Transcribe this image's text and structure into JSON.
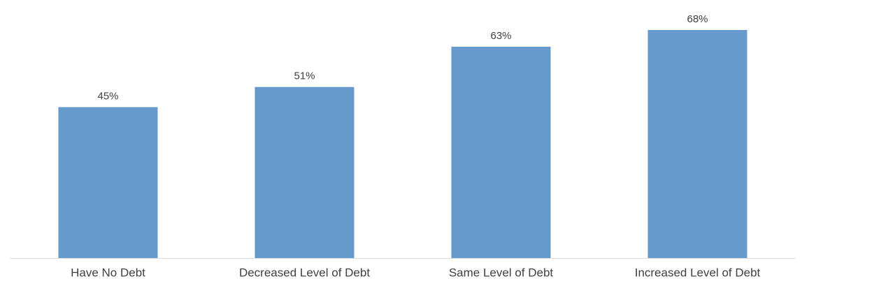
{
  "chart_data": {
    "type": "bar",
    "categories": [
      "Have No Debt",
      "Decreased Level of Debt",
      "Same Level of Debt",
      "Increased Level of Debt"
    ],
    "values": [
      45,
      51,
      63,
      68
    ],
    "value_labels": [
      "45%",
      "51%",
      "63%",
      "68%"
    ],
    "color": "#6699cc"
  }
}
